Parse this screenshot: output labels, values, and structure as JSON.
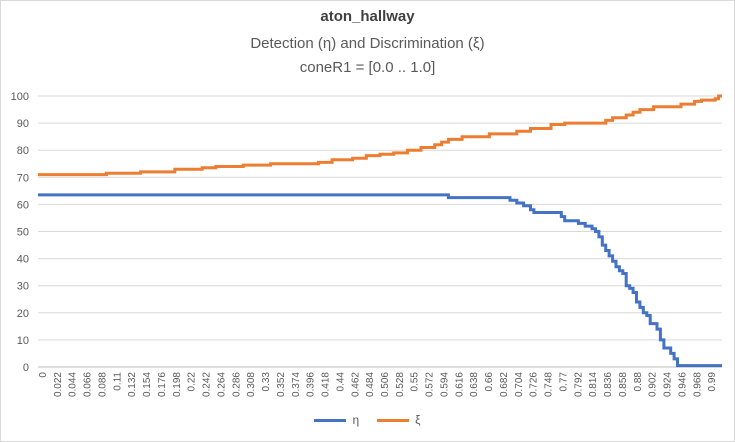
{
  "chart_data": {
    "type": "line",
    "title": "aton_hallway",
    "subtitle": "Detection (η) and Discrimination (ξ)",
    "subtitle2": "coneR1 = [0.0 .. 1.0]",
    "xlabel": "",
    "ylabel": "",
    "ylim": [
      0,
      100
    ],
    "yticks": [
      0,
      10,
      20,
      30,
      40,
      50,
      60,
      70,
      80,
      90,
      100
    ],
    "xlim": [
      0,
      1.0
    ],
    "xticks": [
      "0",
      "0.022",
      "0.044",
      "0.066",
      "0.088",
      "0.11",
      "0.132",
      "0.154",
      "0.176",
      "0.198",
      "0.22",
      "0.242",
      "0.264",
      "0.286",
      "0.308",
      "0.33",
      "0.352",
      "0.374",
      "0.396",
      "0.418",
      "0.44",
      "0.462",
      "0.484",
      "0.506",
      "0.528",
      "0.55",
      "0.572",
      "0.594",
      "0.616",
      "0.638",
      "0.66",
      "0.682",
      "0.704",
      "0.726",
      "0.748",
      "0.77",
      "0.792",
      "0.814",
      "0.836",
      "0.858",
      "0.88",
      "0.902",
      "0.924",
      "0.946",
      "0.968",
      "0.99"
    ],
    "grid": true,
    "legend": "bottom-center",
    "series": [
      {
        "name": "η",
        "color": "#4472c4",
        "points": [
          [
            0,
            63.5
          ],
          [
            0.6,
            63.5
          ],
          [
            0.6,
            62.5
          ],
          [
            0.69,
            62.5
          ],
          [
            0.69,
            61.5
          ],
          [
            0.7,
            61.5
          ],
          [
            0.7,
            60.5
          ],
          [
            0.71,
            60.5
          ],
          [
            0.71,
            59.5
          ],
          [
            0.72,
            59.5
          ],
          [
            0.72,
            58
          ],
          [
            0.725,
            58
          ],
          [
            0.725,
            57
          ],
          [
            0.765,
            57
          ],
          [
            0.765,
            55.5
          ],
          [
            0.77,
            55.5
          ],
          [
            0.77,
            54
          ],
          [
            0.79,
            54
          ],
          [
            0.79,
            53
          ],
          [
            0.8,
            53
          ],
          [
            0.8,
            52
          ],
          [
            0.81,
            52
          ],
          [
            0.81,
            51
          ],
          [
            0.815,
            51
          ],
          [
            0.815,
            50
          ],
          [
            0.82,
            50
          ],
          [
            0.82,
            48
          ],
          [
            0.825,
            48
          ],
          [
            0.825,
            45
          ],
          [
            0.83,
            45
          ],
          [
            0.83,
            43
          ],
          [
            0.835,
            43
          ],
          [
            0.835,
            41
          ],
          [
            0.84,
            41
          ],
          [
            0.84,
            39
          ],
          [
            0.845,
            39
          ],
          [
            0.845,
            37
          ],
          [
            0.85,
            37
          ],
          [
            0.85,
            35.5
          ],
          [
            0.855,
            35.5
          ],
          [
            0.855,
            34.5
          ],
          [
            0.86,
            34.5
          ],
          [
            0.86,
            30
          ],
          [
            0.865,
            30
          ],
          [
            0.865,
            29
          ],
          [
            0.87,
            29
          ],
          [
            0.87,
            27.5
          ],
          [
            0.875,
            27.5
          ],
          [
            0.875,
            24
          ],
          [
            0.88,
            24
          ],
          [
            0.88,
            22
          ],
          [
            0.885,
            22
          ],
          [
            0.885,
            20
          ],
          [
            0.89,
            20
          ],
          [
            0.89,
            19
          ],
          [
            0.895,
            19
          ],
          [
            0.895,
            16
          ],
          [
            0.905,
            16
          ],
          [
            0.905,
            14
          ],
          [
            0.91,
            14
          ],
          [
            0.91,
            10
          ],
          [
            0.915,
            10
          ],
          [
            0.915,
            7
          ],
          [
            0.925,
            7
          ],
          [
            0.925,
            5
          ],
          [
            0.93,
            5
          ],
          [
            0.93,
            3
          ],
          [
            0.935,
            3
          ],
          [
            0.935,
            0.5
          ],
          [
            1.0,
            0.5
          ]
        ]
      },
      {
        "name": "ξ",
        "color": "#ed7d31",
        "points": [
          [
            0,
            71
          ],
          [
            0.1,
            71
          ],
          [
            0.1,
            71.5
          ],
          [
            0.15,
            71.5
          ],
          [
            0.15,
            72
          ],
          [
            0.2,
            72
          ],
          [
            0.2,
            73
          ],
          [
            0.24,
            73
          ],
          [
            0.24,
            73.5
          ],
          [
            0.26,
            73.5
          ],
          [
            0.26,
            74
          ],
          [
            0.3,
            74
          ],
          [
            0.3,
            74.5
          ],
          [
            0.34,
            74.5
          ],
          [
            0.34,
            75
          ],
          [
            0.41,
            75
          ],
          [
            0.41,
            75.5
          ],
          [
            0.43,
            75.5
          ],
          [
            0.43,
            76.5
          ],
          [
            0.46,
            76.5
          ],
          [
            0.46,
            77
          ],
          [
            0.48,
            77
          ],
          [
            0.48,
            78
          ],
          [
            0.5,
            78
          ],
          [
            0.5,
            78.5
          ],
          [
            0.52,
            78.5
          ],
          [
            0.52,
            79
          ],
          [
            0.54,
            79
          ],
          [
            0.54,
            80
          ],
          [
            0.56,
            80
          ],
          [
            0.56,
            81
          ],
          [
            0.58,
            81
          ],
          [
            0.58,
            82
          ],
          [
            0.59,
            82
          ],
          [
            0.59,
            83
          ],
          [
            0.6,
            83
          ],
          [
            0.6,
            84
          ],
          [
            0.62,
            84
          ],
          [
            0.62,
            85
          ],
          [
            0.66,
            85
          ],
          [
            0.66,
            86
          ],
          [
            0.7,
            86
          ],
          [
            0.7,
            87
          ],
          [
            0.72,
            87
          ],
          [
            0.72,
            88
          ],
          [
            0.75,
            88
          ],
          [
            0.75,
            89.5
          ],
          [
            0.77,
            89.5
          ],
          [
            0.77,
            90
          ],
          [
            0.83,
            90
          ],
          [
            0.83,
            91
          ],
          [
            0.84,
            91
          ],
          [
            0.84,
            92
          ],
          [
            0.86,
            92
          ],
          [
            0.86,
            93
          ],
          [
            0.87,
            93
          ],
          [
            0.87,
            94
          ],
          [
            0.88,
            94
          ],
          [
            0.88,
            95
          ],
          [
            0.9,
            95
          ],
          [
            0.9,
            96
          ],
          [
            0.94,
            96
          ],
          [
            0.94,
            97
          ],
          [
            0.96,
            97
          ],
          [
            0.96,
            98
          ],
          [
            0.97,
            98
          ],
          [
            0.97,
            98.5
          ],
          [
            0.99,
            98.5
          ],
          [
            0.99,
            99
          ],
          [
            0.995,
            99
          ],
          [
            0.995,
            100
          ],
          [
            1.0,
            100
          ]
        ]
      }
    ]
  }
}
